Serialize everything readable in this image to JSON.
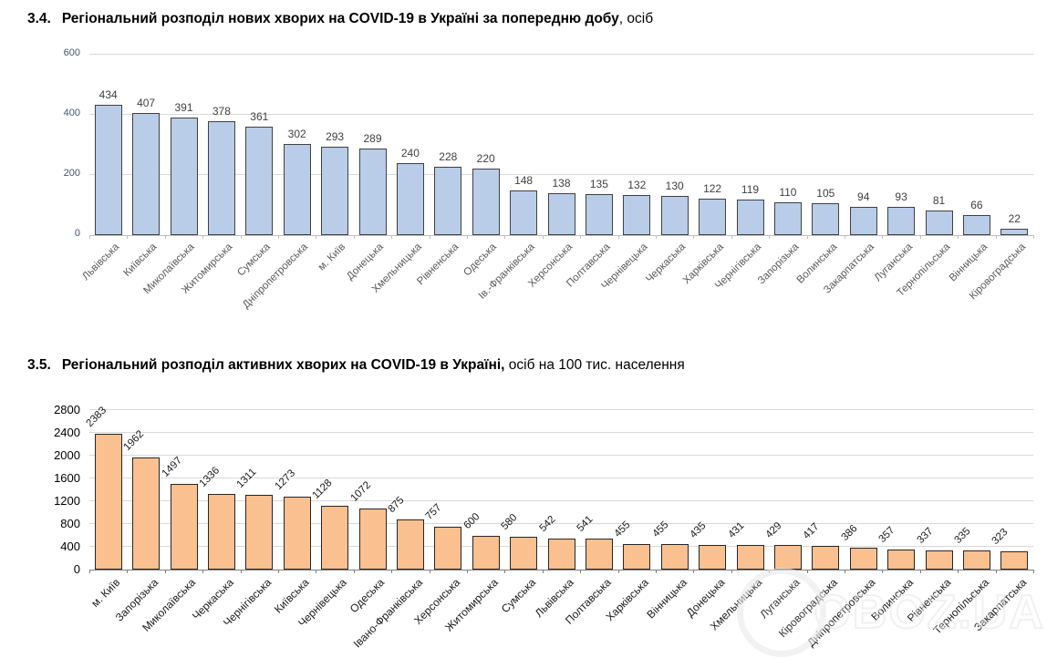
{
  "page": {
    "background": "#ffffff",
    "watermark": "OBOZ.UA"
  },
  "sections": [
    {
      "number": "3.4.",
      "title_bold": "Регіональний розподіл нових хворих на COVID-19 в Україні за попередню добу",
      "title_rest": ", осіб"
    },
    {
      "number": "3.5.",
      "title_bold": "Регіональний розподіл активних хворих на COVID-19 в Україні,",
      "title_rest": " осіб на 100 тис. населення"
    }
  ],
  "chart_data": [
    {
      "type": "bar",
      "title": "Регіональний розподіл нових хворих на COVID-19 в Україні за попередню добу, осіб",
      "categories": [
        "Львівська",
        "Київська",
        "Миколаївська",
        "Житомирська",
        "Сумська",
        "Дніпропетровська",
        "м. Київ",
        "Донецька",
        "Хмельницька",
        "Рівненська",
        "Одеська",
        "Ів.-Франківська",
        "Херсонська",
        "Полтавська",
        "Чернівецька",
        "Черкаська",
        "Харківська",
        "Чернігівська",
        "Запорізька",
        "Волинська",
        "Закарпатська",
        "Луганська",
        "Тернопільська",
        "Вінницька",
        "Кіровоградська"
      ],
      "values": [
        434,
        407,
        391,
        378,
        361,
        302,
        293,
        289,
        240,
        228,
        220,
        148,
        138,
        135,
        132,
        130,
        122,
        119,
        110,
        105,
        94,
        93,
        81,
        66,
        22
      ],
      "xlabel": "",
      "ylabel": "",
      "ylim": [
        0,
        600
      ],
      "yticks": [
        0,
        200,
        400,
        600
      ],
      "grid": true,
      "legend": "none",
      "value_label_rotation": 0,
      "bar_color": "#b9cde8",
      "bar_border": "#404040",
      "axis_label_color": "#44546a"
    },
    {
      "type": "bar",
      "title": "Регіональний розподіл активних хворих на COVID-19 в Україні, осіб на 100 тис. населення",
      "categories": [
        "м. Київ",
        "Запорізька",
        "Миколаївська",
        "Черкаська",
        "Чернігівська",
        "Київська",
        "Чернівецька",
        "Одеська",
        "Івано-Франківська",
        "Херсонська",
        "Житомирська",
        "Сумська",
        "Львівська",
        "Полтавська",
        "Харківська",
        "Вінницька",
        "Донецька",
        "Хмельницька",
        "Луганська",
        "Кіровоградська",
        "Дніпропетровська",
        "Волинська",
        "Рівненська",
        "Тернопільська",
        "Закарпатська"
      ],
      "values": [
        2383,
        1962,
        1497,
        1336,
        1311,
        1273,
        1128,
        1072,
        875,
        757,
        600,
        580,
        542,
        541,
        455,
        455,
        435,
        431,
        429,
        417,
        386,
        357,
        337,
        335,
        323
      ],
      "xlabel": "",
      "ylabel": "",
      "ylim": [
        0,
        2800
      ],
      "yticks": [
        0,
        400,
        800,
        1200,
        1600,
        2000,
        2400,
        2800
      ],
      "grid": true,
      "legend": "none",
      "value_label_rotation": -45,
      "bar_color": "#fbc08f",
      "bar_border": "#262626",
      "axis_label_color": "#000000"
    }
  ]
}
